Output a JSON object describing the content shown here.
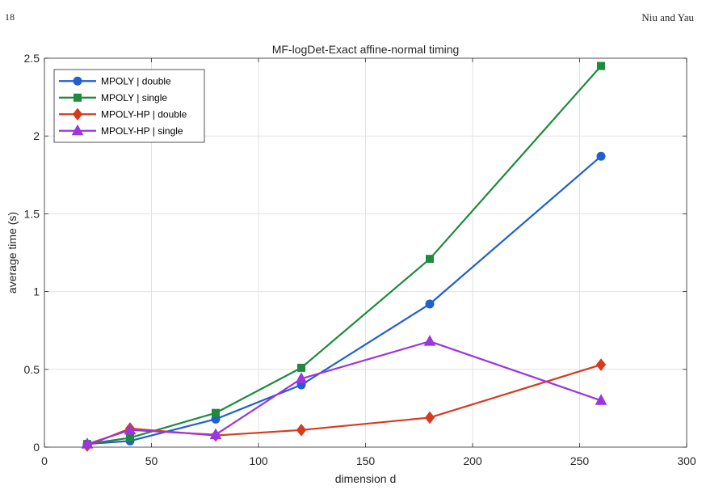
{
  "page": {
    "page_number": "18",
    "authors": "Niu and Yau"
  },
  "chart_data": {
    "type": "line",
    "title": "MF-logDet-Exact affine-normal timing",
    "xlabel": "dimension d",
    "ylabel": "average time (s)",
    "xlim": [
      0,
      300
    ],
    "ylim": [
      0,
      2.5
    ],
    "xticks": [
      0,
      50,
      100,
      150,
      200,
      250,
      300
    ],
    "xtick_labels": [
      "0",
      "50",
      "100",
      "150",
      "200",
      "250",
      "300"
    ],
    "yticks": [
      0,
      0.5,
      1,
      1.5,
      2,
      2.5
    ],
    "ytick_labels": [
      "0",
      "0.5",
      "1",
      "1.5",
      "2",
      "2.5"
    ],
    "grid": true,
    "legend_position": "top-left",
    "x": [
      20,
      40,
      80,
      120,
      180,
      260
    ],
    "series": [
      {
        "name": "MPOLY | double",
        "color": "#1f5fd1",
        "marker": "circle",
        "values": [
          0.02,
          0.04,
          0.18,
          0.4,
          0.92,
          1.87
        ]
      },
      {
        "name": "MPOLY | single",
        "color": "#1e8a3e",
        "marker": "square",
        "values": [
          0.02,
          0.06,
          0.22,
          0.51,
          1.21,
          2.45
        ]
      },
      {
        "name": "MPOLY-HP | double",
        "color": "#d63a1f",
        "marker": "diamond",
        "values": [
          0.01,
          0.12,
          0.075,
          0.11,
          0.19,
          0.53
        ]
      },
      {
        "name": "MPOLY-HP | single",
        "color": "#9b35e0",
        "marker": "triangle",
        "values": [
          0.02,
          0.11,
          0.08,
          0.44,
          0.68,
          0.3
        ]
      }
    ]
  }
}
